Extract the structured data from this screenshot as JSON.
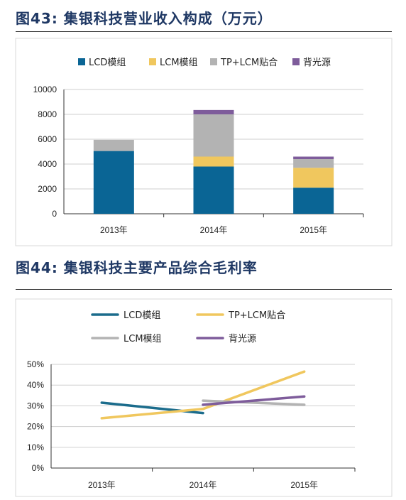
{
  "fig43": {
    "title": "图43:  集银科技营业收入构成（万元）"
  },
  "fig44": {
    "title": "图44:  集银科技主要产品综合毛利率"
  },
  "chart_data": [
    {
      "type": "bar",
      "stacked": true,
      "title": "图43:  集银科技营业收入构成（万元）",
      "categories": [
        "2013年",
        "2014年",
        "2015年"
      ],
      "series": [
        {
          "name": "LCD模组",
          "color": "#0a6595",
          "values": [
            5050,
            3800,
            2100
          ]
        },
        {
          "name": "LCM模组",
          "color": "#f0c75e",
          "values": [
            0,
            800,
            1600
          ]
        },
        {
          "name": "TP+LCM贴合",
          "color": "#b3b3b3",
          "values": [
            900,
            3400,
            700
          ]
        },
        {
          "name": "背光源",
          "color": "#7e5c9b",
          "values": [
            0,
            350,
            200
          ]
        }
      ],
      "ylim": [
        0,
        10000
      ],
      "yticks": [
        "0",
        "2000",
        "4000",
        "6000",
        "8000",
        "10000"
      ],
      "grid": true,
      "legend": "top"
    },
    {
      "type": "line",
      "title": "图44:  集银科技主要产品综合毛利率",
      "categories": [
        "2013年",
        "2014年",
        "2015年"
      ],
      "series": [
        {
          "name": "LCD模组",
          "color": "#1b6c8c",
          "values": [
            31.5,
            26.5,
            null
          ]
        },
        {
          "name": "TP+LCM贴合",
          "color": "#f0c75e",
          "values": [
            24,
            28.5,
            46.5
          ]
        },
        {
          "name": "LCM模组",
          "color": "#b3b3b3",
          "values": [
            null,
            32.5,
            30.5
          ]
        },
        {
          "name": "背光源",
          "color": "#7e5c9b",
          "values": [
            null,
            30.5,
            34.5
          ]
        }
      ],
      "ylim": [
        0,
        50
      ],
      "yticks": [
        "0%",
        "10%",
        "20%",
        "30%",
        "40%",
        "50%"
      ],
      "grid": true,
      "legend": "top"
    }
  ]
}
